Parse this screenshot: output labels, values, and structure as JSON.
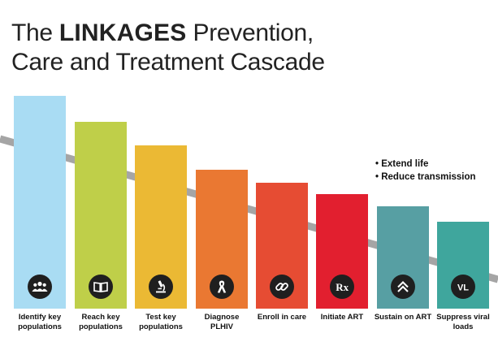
{
  "title": {
    "prefix": "The ",
    "brand": "LINKAGES",
    "line1_rest": " Prevention,",
    "line2": "Care and Treatment Cascade"
  },
  "steps": [
    {
      "label": "Identify key populations",
      "color": "#a9dcf3",
      "icon": "people-icon"
    },
    {
      "label": "Reach key populations",
      "color": "#bfcf49",
      "icon": "book-icon"
    },
    {
      "label": "Test key populations",
      "color": "#ebb934",
      "icon": "microscope-icon"
    },
    {
      "label": "Diagnose PLHIV",
      "color": "#ea7832",
      "icon": "ribbon-icon"
    },
    {
      "label": "Enroll in care",
      "color": "#e64c33",
      "icon": "chain-link-icon"
    },
    {
      "label": "Initiate ART",
      "color": "#e21f2f",
      "icon": "rx-icon"
    },
    {
      "label": "Sustain on ART",
      "color": "#579fa3",
      "icon": "double-chevron-up-icon"
    },
    {
      "label": "Suppress viral loads",
      "color": "#3fa69d",
      "icon": "vl-icon"
    }
  ],
  "vl_text": "VL",
  "rx_text": "Rx",
  "outcomes": [
    "Extend life",
    "Reduce transmission"
  ],
  "line_color": "#a5a5a5",
  "icon_bg": "#1f1f1f"
}
